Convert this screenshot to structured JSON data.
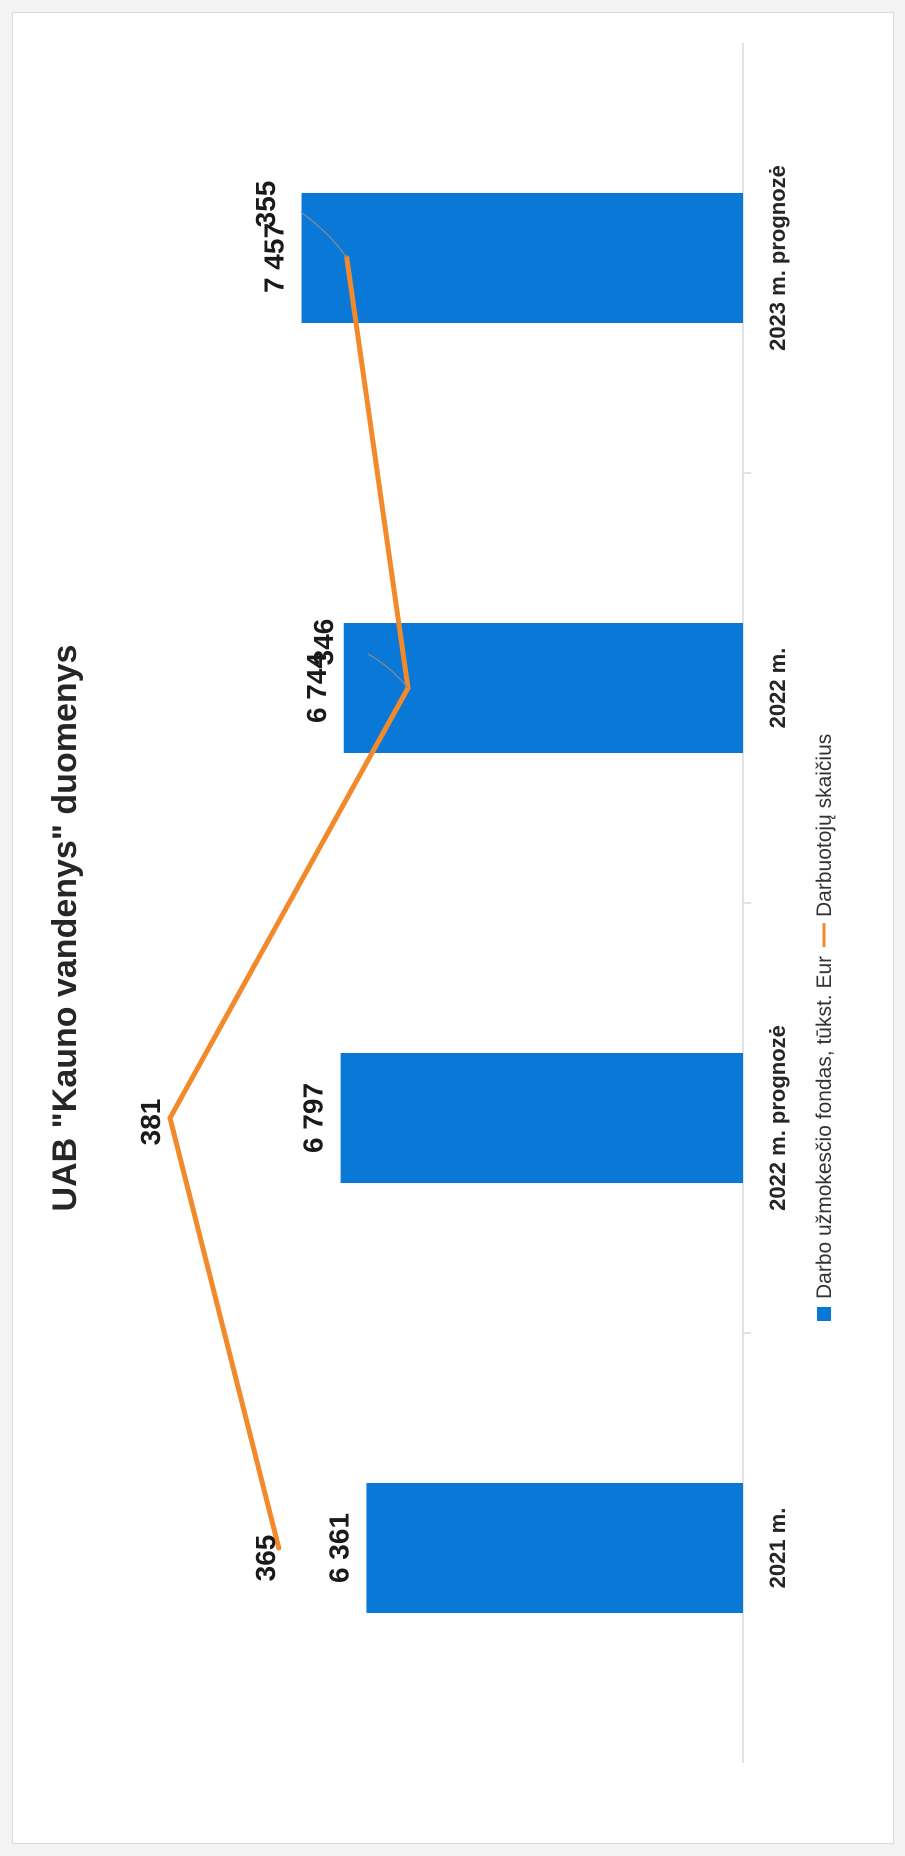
{
  "chart_data": {
    "type": "bar",
    "title": "UAB \"Kauno vandenys\" duomenys",
    "categories": [
      "2021 m.",
      "2022 m. prognozė",
      "2022 m.",
      "2023 m. prognozė"
    ],
    "series": [
      {
        "name": "Darbo užmokesčio fondas, tūkst. Eur",
        "kind": "bar",
        "values": [
          6361,
          6797,
          6744,
          7457
        ],
        "labels": [
          "6 361",
          "6 797",
          "6 744",
          "7 457"
        ],
        "color": "#0a78d7"
      },
      {
        "name": "Darbuotojų skaičius",
        "kind": "line",
        "values": [
          365,
          381,
          346,
          355
        ],
        "labels": [
          "365",
          "381",
          "346",
          "355"
        ],
        "color": "#f28a2b"
      }
    ],
    "orientation": "rotated 90° counter-clockwise",
    "legend": "bottom",
    "grid": false
  }
}
